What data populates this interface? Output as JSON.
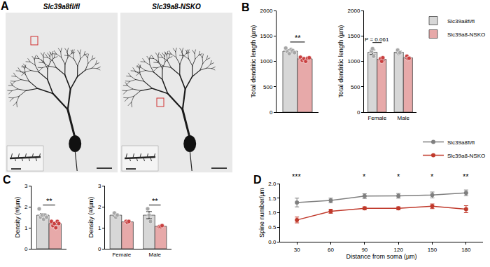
{
  "image_panel": {
    "panel_label": "A",
    "images": [
      {
        "title": "Slc39a8fl/fl"
      },
      {
        "title": "Slc39a8-NSKO"
      }
    ]
  },
  "chart_data": [
    {
      "type": "bar",
      "panel_label": "B",
      "y_label": "Total dendritic length (µm)",
      "categories": [
        null
      ],
      "ylim": [
        0,
        2000
      ],
      "yticks": [
        0,
        500,
        1000,
        1500,
        2000
      ],
      "tick_labels": "y",
      "series": [
        {
          "name": "Slc39a8fl/fl",
          "color": "#a6a6a6",
          "values": [
            1200
          ],
          "errors": [
            30
          ],
          "points": [
            [
              1260,
              1190,
              1150,
              1230,
              1210,
              1170
            ]
          ]
        },
        {
          "name": "Slc39a8-NSKO",
          "color": "#c94040",
          "values": [
            1050
          ],
          "errors": [
            20
          ],
          "points": [
            [
              1080,
              1020,
              1050,
              1000,
              1060,
              1070
            ]
          ]
        }
      ],
      "annotations": [
        {
          "text": "**",
          "category": 0
        }
      ]
    },
    {
      "type": "bar",
      "y_label": "Total dendritic length (µm)",
      "categories": [
        "Female",
        "Male"
      ],
      "ylim": [
        0,
        2000
      ],
      "yticks": [
        0,
        500,
        1000,
        1500,
        2000
      ],
      "legend": "top right",
      "series": [
        {
          "name": "Slc39a8fl/fl",
          "color": "#a6a6a6",
          "values": [
            1180,
            1180
          ],
          "errors": [
            45,
            20
          ],
          "points": [
            [
              1200,
              1250,
              1100
            ],
            [
              1220,
              1150,
              1170
            ]
          ]
        },
        {
          "name": "Slc39a8-NSKO",
          "color": "#c94040",
          "values": [
            1040,
            1070
          ],
          "errors": [
            20,
            15
          ],
          "points": [
            [
              1050,
              1000,
              1070
            ],
            [
              1100,
              1050,
              1060
            ]
          ]
        }
      ],
      "annotations": [
        {
          "text": "P = 0.061",
          "category": 0
        }
      ]
    },
    {
      "type": "bar",
      "panel_label": "C",
      "y_label": "Density (#/µm)",
      "categories": [
        null
      ],
      "ylim": [
        0,
        3
      ],
      "yticks": [
        0,
        1,
        2,
        3
      ],
      "tick_labels": "y",
      "series": [
        {
          "name": "Slc39a8fl/fl",
          "color": "#a6a6a6",
          "values": [
            1.6
          ],
          "errors": [
            0.08
          ],
          "points": [
            [
              1.9,
              1.5,
              1.6,
              1.4,
              1.6,
              1.5
            ]
          ]
        },
        {
          "name": "Slc39a8-NSKO",
          "color": "#c94040",
          "values": [
            1.2
          ],
          "errors": [
            0.05
          ],
          "points": [
            [
              1.3,
              1.1,
              1.2,
              1.0,
              1.3,
              1.2
            ]
          ]
        }
      ],
      "annotations": [
        {
          "text": "**",
          "category": 0
        }
      ]
    },
    {
      "type": "bar",
      "y_label": "Density (#/µm)",
      "categories": [
        "Female",
        "Male"
      ],
      "ylim": [
        0,
        3
      ],
      "yticks": [
        0,
        1,
        2,
        3
      ],
      "series": [
        {
          "name": "Slc39a8fl/fl",
          "color": "#a6a6a6",
          "values": [
            1.6,
            1.6
          ],
          "errors": [
            0.06,
            0.17
          ],
          "points": [
            [
              1.7,
              1.5,
              1.6
            ],
            [
              1.9,
              1.6,
              1.3
            ]
          ]
        },
        {
          "name": "Slc39a8-NSKO",
          "color": "#c94040",
          "values": [
            1.28,
            1.07
          ],
          "errors": [
            0.02,
            0.02
          ],
          "points": [
            [
              1.3,
              1.25,
              1.3
            ],
            [
              1.05,
              1.05,
              1.1
            ]
          ]
        }
      ],
      "annotations": [
        {
          "text": "**",
          "category": 1
        }
      ]
    },
    {
      "type": "line",
      "panel_label": "D",
      "y_label": "Spine number/µm",
      "x_label": "Distance from soma (µm)",
      "x": [
        30,
        60,
        90,
        120,
        150,
        180
      ],
      "xlim": [
        15,
        195
      ],
      "xticks": [
        30,
        60,
        90,
        120,
        150,
        180
      ],
      "ylim": [
        0,
        2
      ],
      "yticks": [
        {
          "value": 0,
          "label": "0.0"
        },
        0.5,
        {
          "value": 1,
          "label": "1.0"
        },
        1.5,
        {
          "value": 2,
          "label": "2.0"
        }
      ],
      "legend": "top right",
      "marker": "circle",
      "series": [
        {
          "name": "Slc39a8fl/fl",
          "color": "#7f7f7f",
          "values": [
            1.35,
            1.42,
            1.57,
            1.58,
            1.61,
            1.68
          ],
          "errors": [
            0.15,
            0.08,
            0.08,
            0.08,
            0.1,
            0.1
          ]
        },
        {
          "name": "Slc39a8-NSKO",
          "color": "#c0392b",
          "values": [
            0.75,
            1.05,
            1.15,
            1.15,
            1.22,
            1.12
          ],
          "errors": [
            0.1,
            0.07,
            0.05,
            0.05,
            0.08,
            0.12
          ]
        }
      ],
      "annotations": [
        {
          "text": "***",
          "x": 30
        },
        {
          "text": "*",
          "x": 90
        },
        {
          "text": "*",
          "x": 120
        },
        {
          "text": "*",
          "x": 150
        },
        {
          "text": "**",
          "x": 180
        }
      ]
    }
  ]
}
